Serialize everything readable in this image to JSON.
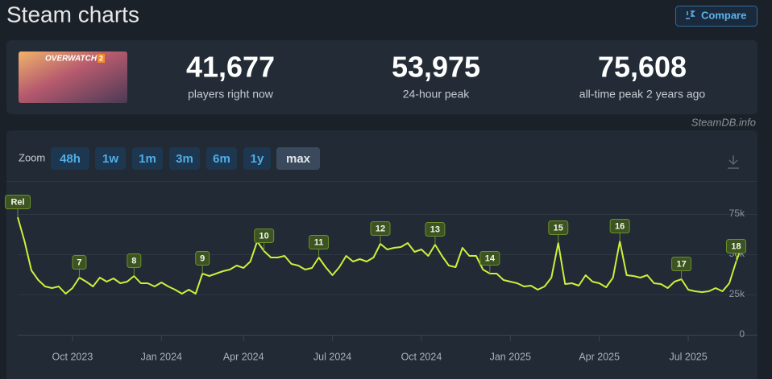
{
  "header": {
    "title": "Steam charts",
    "compare": "Compare"
  },
  "game": {
    "logo": "OVERWATCH",
    "logo_badge": "2"
  },
  "stats": [
    {
      "value": "41,677",
      "label": "players right now"
    },
    {
      "value": "53,975",
      "label": "24-hour peak"
    },
    {
      "value": "75,608",
      "label": "all-time peak 2 years ago"
    }
  ],
  "source": "SteamDB.info",
  "zoom": {
    "label": "Zoom",
    "options": [
      "48h",
      "1w",
      "1m",
      "3m",
      "6m",
      "1y",
      "max"
    ],
    "selected": "max"
  },
  "chart_data": {
    "type": "line",
    "color": "#cdf03a",
    "categories": [
      null,
      null,
      null,
      null,
      null,
      null,
      null,
      null,
      "Oct 2023",
      null,
      null,
      null,
      null,
      null,
      null,
      null,
      null,
      null,
      null,
      null,
      null,
      "Jan 2024",
      null,
      null,
      null,
      null,
      null,
      null,
      null,
      null,
      null,
      null,
      null,
      "Apr 2024",
      null,
      null,
      null,
      null,
      null,
      null,
      null,
      null,
      null,
      null,
      null,
      null,
      "Jul 2024",
      null,
      null,
      null,
      null,
      null,
      null,
      null,
      null,
      null,
      null,
      null,
      null,
      "Oct 2024",
      null,
      null,
      null,
      null,
      null,
      null,
      null,
      null,
      null,
      null,
      null,
      null,
      "Jan 2025",
      null,
      null,
      null,
      null,
      null,
      null,
      null,
      null,
      null,
      null,
      null,
      null,
      "Apr 2025",
      null,
      null,
      null,
      null,
      null,
      null,
      null,
      null,
      null,
      null,
      null,
      null,
      "Jul 2025",
      null,
      null,
      null,
      null,
      null,
      null,
      null,
      null
    ],
    "values": [
      73000,
      58000,
      40000,
      34000,
      30000,
      29000,
      30000,
      25500,
      29000,
      35500,
      33000,
      30000,
      35500,
      33000,
      35000,
      32000,
      33000,
      36500,
      32000,
      32000,
      30000,
      32500,
      30000,
      28000,
      25500,
      28000,
      25500,
      38000,
      36500,
      38000,
      39500,
      40500,
      43000,
      41500,
      45500,
      58000,
      52000,
      48000,
      48000,
      49000,
      44000,
      43000,
      40500,
      41500,
      48000,
      42000,
      37000,
      42000,
      49000,
      45500,
      47000,
      45500,
      48000,
      56500,
      53000,
      54000,
      54500,
      57000,
      51500,
      53000,
      49000,
      56000,
      49000,
      43000,
      42000,
      54000,
      49000,
      49000,
      40500,
      38000,
      38000,
      34000,
      33000,
      32000,
      30000,
      30500,
      28000,
      30000,
      35500,
      57000,
      31500,
      32000,
      30500,
      37000,
      33000,
      32000,
      29500,
      35500,
      58000,
      37000,
      36500,
      35500,
      37000,
      32000,
      31500,
      29000,
      33000,
      34500,
      28000,
      27000,
      26500,
      27000,
      29000,
      27000,
      32000,
      45500,
      57000
    ],
    "ylim": [
      0,
      90000
    ],
    "yticks": [
      0,
      {
        "value": 25000,
        "label": "25k"
      },
      {
        "value": 50000,
        "label": "50k"
      },
      {
        "value": 75000,
        "label": "75k"
      }
    ],
    "grid": true,
    "annotations": [
      {
        "label": "Rel",
        "x": 0
      },
      {
        "label": "7",
        "x": 9
      },
      {
        "label": "8",
        "x": 17
      },
      {
        "label": "9",
        "x": 27
      },
      {
        "label": "10",
        "x": 36
      },
      {
        "label": "11",
        "x": 44
      },
      {
        "label": "12",
        "x": 53
      },
      {
        "label": "13",
        "x": 61
      },
      {
        "label": "14",
        "x": 69
      },
      {
        "label": "15",
        "x": 79
      },
      {
        "label": "16",
        "x": 88
      },
      {
        "label": "17",
        "x": 97
      },
      {
        "label": "18",
        "x": 105
      }
    ]
  }
}
